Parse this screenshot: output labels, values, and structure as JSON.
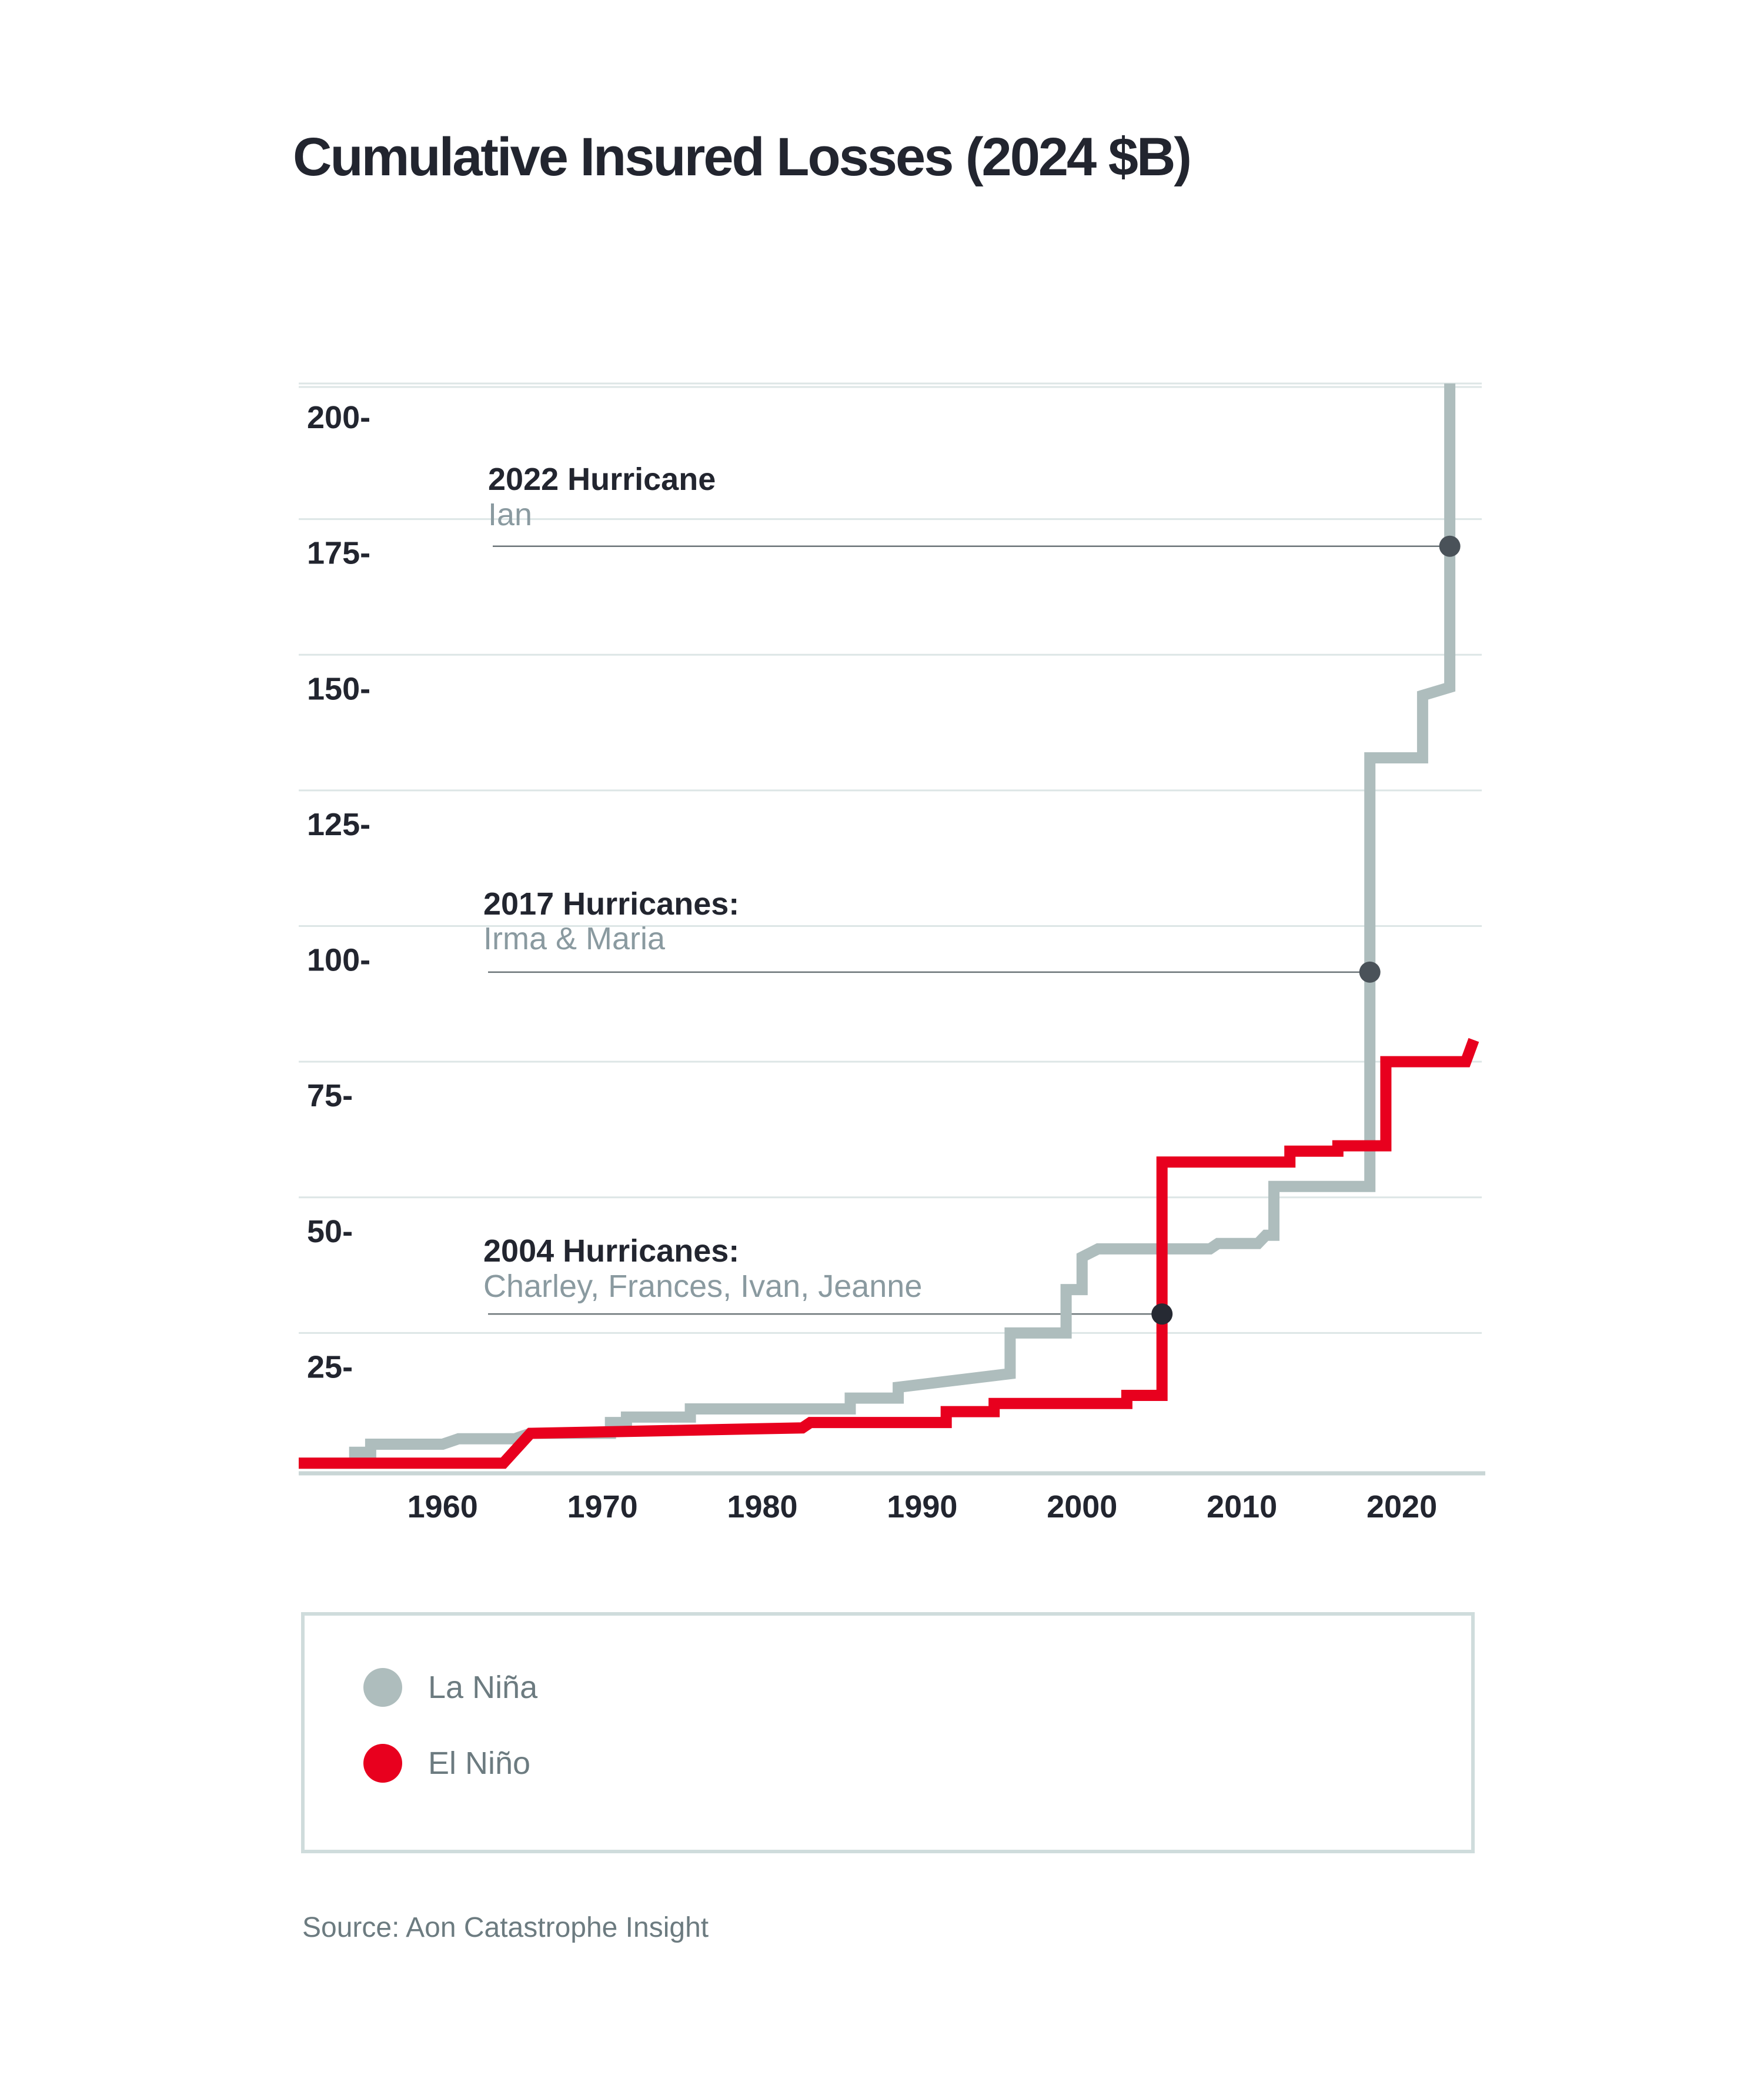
{
  "chart_data": {
    "type": "line",
    "step": true,
    "title": "Cumulative Insured Losses (2024 $B)",
    "xlabel": "",
    "ylabel": "",
    "xlim": [
      1951,
      2025
    ],
    "ylim": [
      0,
      200
    ],
    "x_ticks": [
      1960,
      1970,
      1980,
      1990,
      2000,
      2010,
      2020
    ],
    "y_ticks": [
      25,
      50,
      75,
      100,
      125,
      150,
      175,
      200
    ],
    "y_tick_labels": [
      "25-",
      "50-",
      "75-",
      "100-",
      "125-",
      "150-",
      "175-",
      "200-"
    ],
    "grid": "horizontal",
    "series": [
      {
        "name": "La Niña",
        "color": "#aebdbd",
        "points": [
          [
            1951,
            1
          ],
          [
            1954.5,
            1
          ],
          [
            1954.5,
            3
          ],
          [
            1955.5,
            3
          ],
          [
            1955.5,
            4.5
          ],
          [
            1960,
            4.5
          ],
          [
            1961,
            5.5
          ],
          [
            1964.5,
            5.5
          ],
          [
            1965.5,
            6.5
          ],
          [
            1970.5,
            6.5
          ],
          [
            1970.5,
            8.5
          ],
          [
            1971.5,
            8.5
          ],
          [
            1971.5,
            9.5
          ],
          [
            1975.5,
            9.5
          ],
          [
            1975.5,
            11
          ],
          [
            1985.5,
            11
          ],
          [
            1985.5,
            13
          ],
          [
            1988.5,
            13
          ],
          [
            1988.5,
            15
          ],
          [
            1995.5,
            17.5
          ],
          [
            1995.5,
            25
          ],
          [
            1999,
            25
          ],
          [
            1999,
            33
          ],
          [
            2000,
            33
          ],
          [
            2000,
            39
          ],
          [
            2001,
            40.5
          ],
          [
            2008,
            40.5
          ],
          [
            2008.5,
            41.5
          ],
          [
            2011,
            41.5
          ],
          [
            2011.5,
            43
          ],
          [
            2012,
            43
          ],
          [
            2012,
            52
          ],
          [
            2018,
            52
          ],
          [
            2018,
            131
          ],
          [
            2021.3,
            131
          ],
          [
            2021.3,
            142.5
          ],
          [
            2023,
            144
          ],
          [
            2023,
            200
          ]
        ]
      },
      {
        "name": "El Niño",
        "color": "#e8001e",
        "points": [
          [
            1951,
            1
          ],
          [
            1963.8,
            1
          ],
          [
            1965.5,
            6.5
          ],
          [
            1982.5,
            7.5
          ],
          [
            1983,
            8.5
          ],
          [
            1991.5,
            8.5
          ],
          [
            1991.5,
            10.5
          ],
          [
            1994.5,
            10.5
          ],
          [
            1994.5,
            12
          ],
          [
            2002.8,
            12
          ],
          [
            2002.8,
            13.5
          ],
          [
            2005,
            13.5
          ],
          [
            2005,
            56.5
          ],
          [
            2013,
            56.5
          ],
          [
            2013,
            58.5
          ],
          [
            2016,
            58.5
          ],
          [
            2016,
            59.5
          ],
          [
            2019,
            59.5
          ],
          [
            2019,
            75
          ],
          [
            2024,
            75
          ],
          [
            2024.5,
            79
          ]
        ]
      }
    ],
    "annotations": [
      {
        "title": "2022 Hurricane",
        "subtitle": "Ian",
        "point": [
          2023,
          170
        ]
      },
      {
        "title": "2017 Hurricanes:",
        "subtitle": "Irma & Maria",
        "point": [
          2018,
          91.5
        ]
      },
      {
        "title": "2004 Hurricanes:",
        "subtitle": "Charley, Frances, Ivan, Jeanne",
        "point": [
          2005,
          28.5
        ]
      }
    ],
    "legend_position": "bottom"
  },
  "source": "Source: Aon Catastrophe Insight"
}
